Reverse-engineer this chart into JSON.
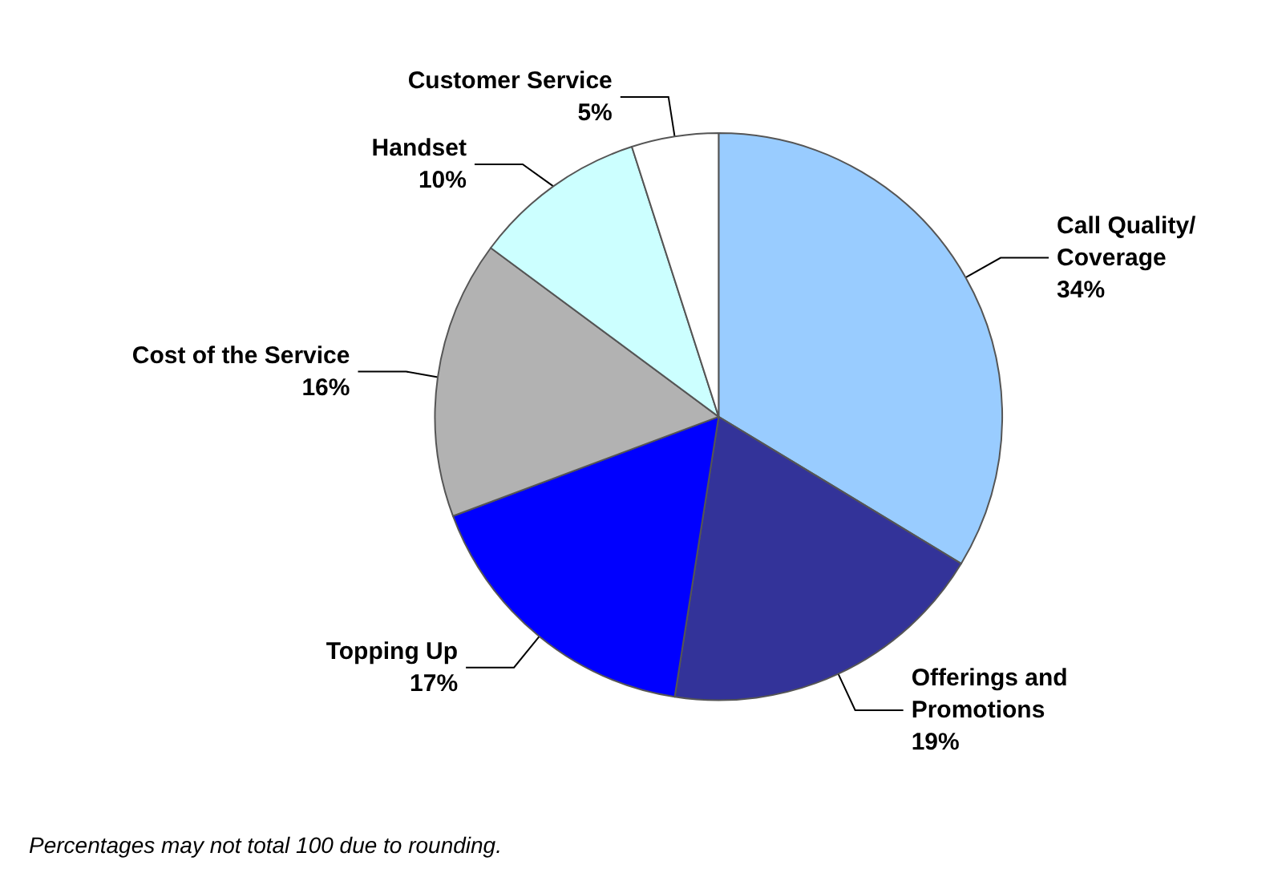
{
  "chart_data": {
    "type": "pie",
    "categories": [
      "Call Quality/\nCoverage",
      "Offerings and\nPromotions",
      "Topping Up",
      "Cost of the Service",
      "Handset",
      "Customer Service"
    ],
    "values": [
      34,
      19,
      17,
      16,
      10,
      5
    ],
    "value_labels": [
      "34%",
      "19%",
      "17%",
      "16%",
      "10%",
      "5%"
    ],
    "colors": [
      "#99ccff",
      "#333399",
      "#0000ff",
      "#b2b2b2",
      "#ccffff",
      "#ffffff"
    ],
    "annotations": [
      "Percentages may not total 100 due to rounding."
    ]
  }
}
